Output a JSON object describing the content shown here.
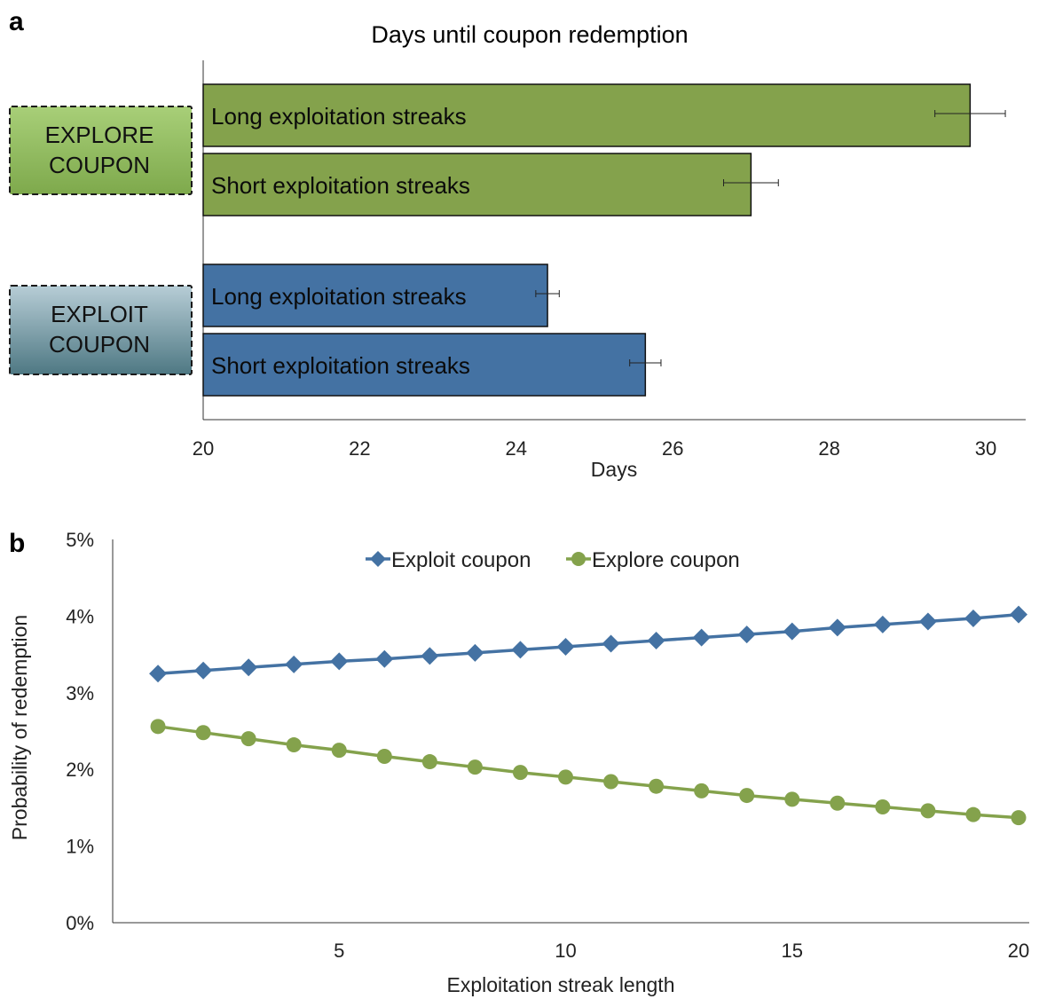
{
  "colors": {
    "explore": "#84a24c",
    "exploit": "#4472a3",
    "explore_box_top": "#a8cf78",
    "explore_box_bottom": "#7ea94c",
    "exploit_box_top": "#b7cdd6",
    "exploit_box_bottom": "#4e7883"
  },
  "chart_data": [
    {
      "panel": "a",
      "type": "bar",
      "orientation": "horizontal",
      "title": "Days until coupon redemption",
      "xlabel": "Days",
      "xlim": [
        20,
        30.3
      ],
      "xticks": [
        20,
        22,
        24,
        26,
        28,
        30
      ],
      "groups": [
        {
          "label_lines": [
            "EXPLORE",
            "COUPON"
          ],
          "color": "#84a24c",
          "bars": [
            {
              "label": "Long exploitation streaks",
              "value": 29.8,
              "err_low": 29.35,
              "err_high": 30.25
            },
            {
              "label": "Short exploitation streaks",
              "value": 27.0,
              "err_low": 26.65,
              "err_high": 27.35
            }
          ]
        },
        {
          "label_lines": [
            "EXPLOIT",
            "COUPON"
          ],
          "color": "#4472a3",
          "bars": [
            {
              "label": "Long exploitation streaks",
              "value": 24.4,
              "err_low": 24.25,
              "err_high": 24.55
            },
            {
              "label": "Short exploitation streaks",
              "value": 25.65,
              "err_low": 25.45,
              "err_high": 25.85
            }
          ]
        }
      ]
    },
    {
      "panel": "b",
      "type": "line",
      "xlabel": "Exploitation streak length",
      "ylabel": "Probability of redemption",
      "xlim": [
        0,
        20
      ],
      "ylim": [
        0,
        5
      ],
      "xticks": [
        5,
        10,
        15,
        20
      ],
      "yticks": [
        0,
        1,
        2,
        3,
        4,
        5
      ],
      "ytick_labels": [
        "0%",
        "1%",
        "2%",
        "3%",
        "4%",
        "5%"
      ],
      "legend_position": "top",
      "x": [
        1,
        2,
        3,
        4,
        5,
        6,
        7,
        8,
        9,
        10,
        11,
        12,
        13,
        14,
        15,
        16,
        17,
        18,
        19,
        20
      ],
      "series": [
        {
          "name": "Exploit coupon",
          "marker": "diamond",
          "color": "#4472a3",
          "values": [
            3.25,
            3.29,
            3.33,
            3.37,
            3.41,
            3.44,
            3.48,
            3.52,
            3.56,
            3.6,
            3.64,
            3.68,
            3.72,
            3.76,
            3.8,
            3.85,
            3.89,
            3.93,
            3.97,
            4.02
          ]
        },
        {
          "name": "Explore coupon",
          "marker": "circle",
          "color": "#84a24c",
          "values": [
            2.56,
            2.48,
            2.4,
            2.32,
            2.25,
            2.17,
            2.1,
            2.03,
            1.96,
            1.9,
            1.84,
            1.78,
            1.72,
            1.66,
            1.61,
            1.56,
            1.51,
            1.46,
            1.41,
            1.37
          ]
        }
      ]
    }
  ]
}
